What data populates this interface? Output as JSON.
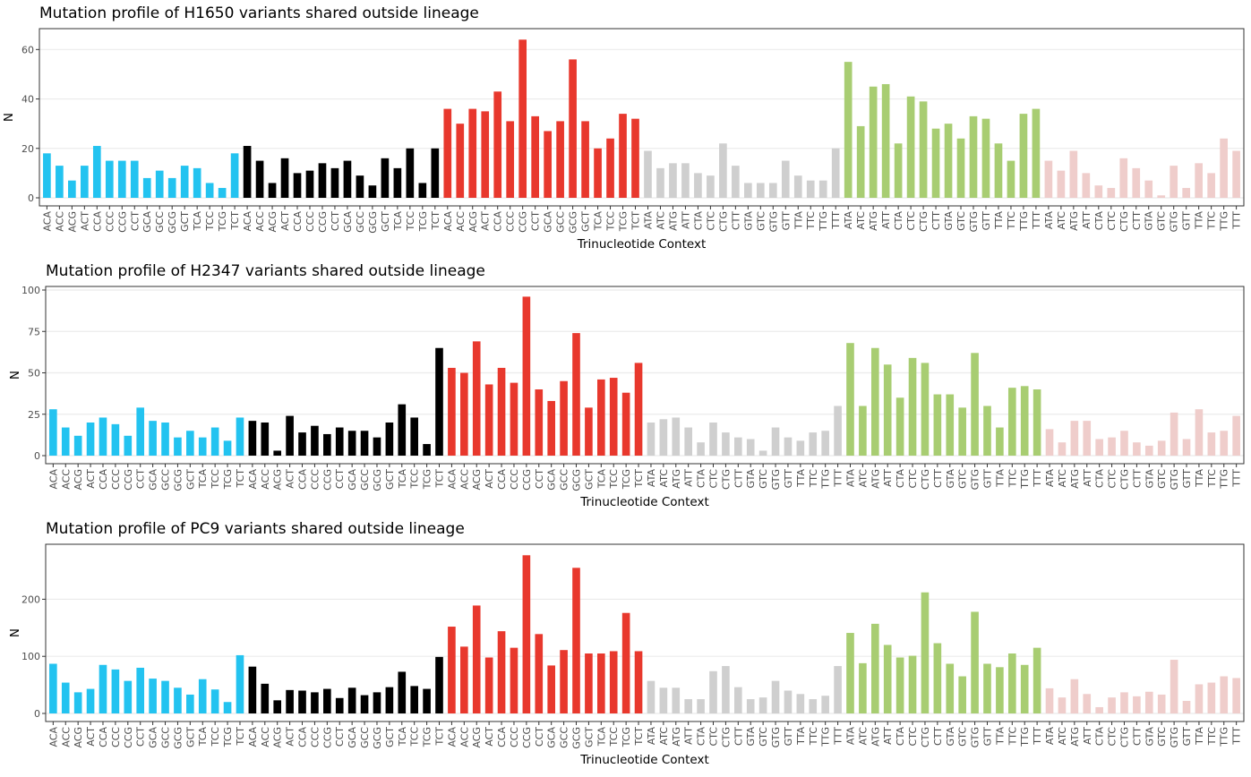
{
  "labels": {
    "xlabel": "Trinucleotide Context",
    "ylabel": "N"
  },
  "group_colors": [
    "#23c3f0",
    "#000000",
    "#e8382d",
    "#cfcfcf",
    "#a8cd72",
    "#efcdcb"
  ],
  "chart_data": [
    {
      "type": "bar",
      "title": "Mutation profile of H1650 variants shared outside lineage",
      "xlabel": "Trinucleotide Context",
      "ylabel": "N",
      "ylim": [
        0,
        67
      ],
      "yticks": [
        0,
        20,
        40,
        60
      ],
      "grid": true,
      "categories": [
        "ACA",
        "ACC",
        "ACG",
        "ACT",
        "CCA",
        "CCC",
        "CCG",
        "CCT",
        "GCA",
        "GCC",
        "GCG",
        "GCT",
        "TCA",
        "TCC",
        "TCG",
        "TCT",
        "ACA",
        "ACC",
        "ACG",
        "ACT",
        "CCA",
        "CCC",
        "CCG",
        "CCT",
        "GCA",
        "GCC",
        "GCG",
        "GCT",
        "TCA",
        "TCC",
        "TCG",
        "TCT",
        "ACA",
        "ACC",
        "ACG",
        "ACT",
        "CCA",
        "CCC",
        "CCG",
        "CCT",
        "GCA",
        "GCC",
        "GCG",
        "GCT",
        "TCA",
        "TCC",
        "TCG",
        "TCT",
        "ATA",
        "ATC",
        "ATG",
        "ATT",
        "CTA",
        "CTC",
        "CTG",
        "CTT",
        "GTA",
        "GTC",
        "GTG",
        "GTT",
        "TTA",
        "TTC",
        "TTG",
        "TTT",
        "ATA",
        "ATC",
        "ATG",
        "ATT",
        "CTA",
        "CTC",
        "CTG",
        "CTT",
        "GTA",
        "GTC",
        "GTG",
        "GTT",
        "TTA",
        "TTC",
        "TTG",
        "TTT",
        "ATA",
        "ATC",
        "ATG",
        "ATT",
        "CTA",
        "CTC",
        "CTG",
        "CTT",
        "GTA",
        "GTC",
        "GTG",
        "GTT",
        "TTA",
        "TTC",
        "TTG",
        "TTT"
      ],
      "values": [
        18,
        13,
        7,
        13,
        21,
        15,
        15,
        15,
        8,
        11,
        8,
        13,
        12,
        6,
        4,
        18,
        21,
        15,
        6,
        16,
        10,
        11,
        14,
        12,
        15,
        9,
        5,
        16,
        12,
        20,
        6,
        20,
        36,
        30,
        36,
        35,
        43,
        31,
        64,
        33,
        27,
        31,
        56,
        31,
        20,
        24,
        34,
        32,
        19,
        12,
        14,
        14,
        10,
        9,
        22,
        13,
        6,
        6,
        6,
        15,
        9,
        7,
        7,
        20,
        55,
        29,
        45,
        46,
        22,
        41,
        39,
        28,
        30,
        24,
        33,
        32,
        22,
        15,
        34,
        36,
        15,
        11,
        19,
        10,
        5,
        4,
        16,
        12,
        7,
        1,
        13,
        4,
        14,
        10,
        24,
        19
      ]
    },
    {
      "type": "bar",
      "title": "Mutation profile of H2347 variants shared outside lineage",
      "xlabel": "Trinucleotide Context",
      "ylabel": "N",
      "ylim": [
        0,
        100
      ],
      "yticks": [
        0,
        25,
        50,
        75,
        100
      ],
      "grid": true,
      "categories": [
        "ACA",
        "ACC",
        "ACG",
        "ACT",
        "CCA",
        "CCC",
        "CCG",
        "CCT",
        "GCA",
        "GCC",
        "GCG",
        "GCT",
        "TCA",
        "TCC",
        "TCG",
        "TCT",
        "ACA",
        "ACC",
        "ACG",
        "ACT",
        "CCA",
        "CCC",
        "CCG",
        "CCT",
        "GCA",
        "GCC",
        "GCG",
        "GCT",
        "TCA",
        "TCC",
        "TCG",
        "TCT",
        "ACA",
        "ACC",
        "ACG",
        "ACT",
        "CCA",
        "CCC",
        "CCG",
        "CCT",
        "GCA",
        "GCC",
        "GCG",
        "GCT",
        "TCA",
        "TCC",
        "TCG",
        "TCT",
        "ATA",
        "ATC",
        "ATG",
        "ATT",
        "CTA",
        "CTC",
        "CTG",
        "CTT",
        "GTA",
        "GTC",
        "GTG",
        "GTT",
        "TTA",
        "TTC",
        "TTG",
        "TTT",
        "ATA",
        "ATC",
        "ATG",
        "ATT",
        "CTA",
        "CTC",
        "CTG",
        "CTT",
        "GTA",
        "GTC",
        "GTG",
        "GTT",
        "TTA",
        "TTC",
        "TTG",
        "TTT",
        "ATA",
        "ATC",
        "ATG",
        "ATT",
        "CTA",
        "CTC",
        "CTG",
        "CTT",
        "GTA",
        "GTC",
        "GTG",
        "GTT",
        "TTA",
        "TTC",
        "TTG",
        "TTT"
      ],
      "values": [
        28,
        17,
        12,
        20,
        23,
        19,
        12,
        29,
        21,
        20,
        11,
        15,
        11,
        17,
        9,
        23,
        21,
        20,
        3,
        24,
        14,
        18,
        13,
        17,
        15,
        15,
        11,
        20,
        31,
        23,
        7,
        65,
        53,
        50,
        69,
        43,
        53,
        44,
        96,
        40,
        33,
        45,
        74,
        29,
        46,
        47,
        38,
        56,
        20,
        22,
        23,
        17,
        8,
        20,
        14,
        11,
        10,
        3,
        17,
        11,
        9,
        14,
        15,
        30,
        68,
        30,
        65,
        55,
        35,
        59,
        56,
        37,
        37,
        29,
        62,
        30,
        17,
        41,
        42,
        40,
        16,
        8,
        21,
        21,
        10,
        11,
        15,
        8,
        6,
        9,
        26,
        10,
        28,
        14,
        15,
        24
      ]
    },
    {
      "type": "bar",
      "title": "Mutation profile of PC9 variants shared outside lineage",
      "xlabel": "Trinucleotide Context",
      "ylabel": "N",
      "ylim": [
        0,
        290
      ],
      "yticks": [
        0,
        100,
        200
      ],
      "grid": true,
      "categories": [
        "ACA",
        "ACC",
        "ACG",
        "ACT",
        "CCA",
        "CCC",
        "CCG",
        "CCT",
        "GCA",
        "GCC",
        "GCG",
        "GCT",
        "TCA",
        "TCC",
        "TCG",
        "TCT",
        "ACA",
        "ACC",
        "ACG",
        "ACT",
        "CCA",
        "CCC",
        "CCG",
        "CCT",
        "GCA",
        "GCC",
        "GCG",
        "GCT",
        "TCA",
        "TCC",
        "TCG",
        "TCT",
        "ACA",
        "ACC",
        "ACG",
        "ACT",
        "CCA",
        "CCC",
        "CCG",
        "CCT",
        "GCA",
        "GCC",
        "GCG",
        "GCT",
        "TCA",
        "TCC",
        "TCG",
        "TCT",
        "ATA",
        "ATC",
        "ATG",
        "ATT",
        "CTA",
        "CTC",
        "CTG",
        "CTT",
        "GTA",
        "GTC",
        "GTG",
        "GTT",
        "TTA",
        "TTC",
        "TTG",
        "TTT",
        "ATA",
        "ATC",
        "ATG",
        "ATT",
        "CTA",
        "CTC",
        "CTG",
        "CTT",
        "GTA",
        "GTC",
        "GTG",
        "GTT",
        "TTA",
        "TTC",
        "TTG",
        "TTT",
        "ATA",
        "ATC",
        "ATG",
        "ATT",
        "CTA",
        "CTC",
        "CTG",
        "CTT",
        "GTA",
        "GTC",
        "GTG",
        "GTT",
        "TTA",
        "TTC",
        "TTG",
        "TTT"
      ],
      "values": [
        87,
        54,
        37,
        43,
        85,
        77,
        57,
        80,
        61,
        57,
        45,
        33,
        60,
        42,
        20,
        102,
        82,
        52,
        23,
        41,
        40,
        37,
        43,
        27,
        45,
        32,
        37,
        46,
        73,
        48,
        43,
        99,
        152,
        117,
        189,
        98,
        144,
        115,
        277,
        139,
        84,
        111,
        255,
        105,
        105,
        109,
        176,
        109,
        57,
        45,
        45,
        25,
        25,
        74,
        83,
        46,
        25,
        28,
        57,
        40,
        34,
        25,
        31,
        83,
        141,
        88,
        157,
        120,
        98,
        101,
        212,
        123,
        87,
        65,
        178,
        87,
        81,
        105,
        85,
        115,
        44,
        28,
        60,
        34,
        11,
        28,
        37,
        30,
        38,
        33,
        94,
        22,
        51,
        54,
        65,
        62
      ]
    }
  ]
}
